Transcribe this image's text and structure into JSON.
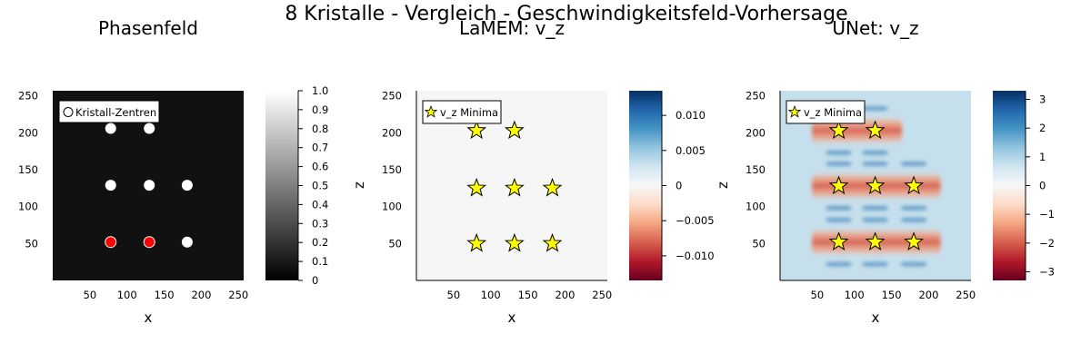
{
  "suptitle": "8 Kristalle - Vergleich - Geschwindigkeitsfeld-Vorhersage",
  "colors": {
    "phase_cmap": [
      "#000000",
      "#ffffff"
    ],
    "rdbu_cmap": [
      "#67001f",
      "#b2182b",
      "#d6604d",
      "#f4a582",
      "#fddbc7",
      "#f7f7f7",
      "#d1e5f0",
      "#92c5de",
      "#4393c3",
      "#2166ac",
      "#053061"
    ],
    "phase_background": "#111111",
    "crystal_white": "#ffffff",
    "crystal_red": "#ff0000",
    "star_fill": "#ffff00",
    "star_stroke": "#000000",
    "lamem_background": "#f6f6f6",
    "unet_background": "#c6dfec"
  },
  "chart_data": [
    {
      "type": "heatmap",
      "title": "Phasenfeld",
      "xlabel": "x",
      "ylabel": "",
      "xlim": [
        0,
        257
      ],
      "ylim": [
        0,
        257
      ],
      "xticks": [
        "50",
        "100",
        "150",
        "200",
        "250"
      ],
      "yticks": [
        "50",
        "100",
        "150",
        "200",
        "250"
      ],
      "grid": false,
      "legend": {
        "placement": "top-left",
        "entries": [
          "Kristall-Zentren"
        ]
      },
      "colorbar": {
        "min": 0,
        "max": 1,
        "ticks": [
          "0",
          "0.1",
          "0.2",
          "0.3",
          "0.4",
          "0.5",
          "0.6",
          "0.7",
          "0.8",
          "0.9",
          "1.0"
        ]
      },
      "crystals": [
        {
          "x": 78,
          "y": 206,
          "color": "white"
        },
        {
          "x": 130,
          "y": 206,
          "color": "white"
        },
        {
          "x": 78,
          "y": 129,
          "color": "white"
        },
        {
          "x": 130,
          "y": 129,
          "color": "white"
        },
        {
          "x": 181,
          "y": 129,
          "color": "white"
        },
        {
          "x": 78,
          "y": 52,
          "color": "red"
        },
        {
          "x": 130,
          "y": 52,
          "color": "red"
        },
        {
          "x": 181,
          "y": 52,
          "color": "white"
        }
      ]
    },
    {
      "type": "heatmap",
      "title": "LaMEM: v_z",
      "xlabel": "x",
      "ylabel": "z",
      "xlim": [
        0,
        257
      ],
      "ylim": [
        0,
        257
      ],
      "xticks": [
        "50",
        "100",
        "150",
        "200",
        "250"
      ],
      "yticks": [
        "50",
        "100",
        "150",
        "200",
        "250"
      ],
      "grid": false,
      "legend": {
        "placement": "top-left",
        "entries": [
          "v_z Minima"
        ]
      },
      "colorbar": {
        "min": -0.0135,
        "max": 0.0135,
        "ticks": [
          "0.010",
          "0.005",
          "0",
          "−0.005",
          "−0.010"
        ]
      },
      "minima": [
        {
          "x": 81,
          "y": 203
        },
        {
          "x": 132,
          "y": 203
        },
        {
          "x": 81,
          "y": 125
        },
        {
          "x": 132,
          "y": 125
        },
        {
          "x": 183,
          "y": 125
        },
        {
          "x": 81,
          "y": 50
        },
        {
          "x": 132,
          "y": 50
        },
        {
          "x": 183,
          "y": 50
        }
      ]
    },
    {
      "type": "heatmap",
      "title": "UNet: v_z",
      "xlabel": "x",
      "ylabel": "z",
      "xlim": [
        0,
        257
      ],
      "ylim": [
        0,
        257
      ],
      "xticks": [
        "50",
        "100",
        "150",
        "200",
        "250"
      ],
      "yticks": [
        "50",
        "100",
        "150",
        "200",
        "250"
      ],
      "grid": false,
      "legend": {
        "placement": "top-left",
        "entries": [
          "v_z Minima"
        ]
      },
      "colorbar": {
        "min": -3.3,
        "max": 3.3,
        "ticks": [
          "3",
          "2",
          "1",
          "0",
          "−1",
          "−2",
          "−3"
        ]
      },
      "minima": [
        {
          "x": 79,
          "y": 203
        },
        {
          "x": 128,
          "y": 203
        },
        {
          "x": 79,
          "y": 128
        },
        {
          "x": 128,
          "y": 128
        },
        {
          "x": 180,
          "y": 128
        },
        {
          "x": 79,
          "y": 52
        },
        {
          "x": 128,
          "y": 52
        },
        {
          "x": 180,
          "y": 52
        }
      ]
    }
  ]
}
